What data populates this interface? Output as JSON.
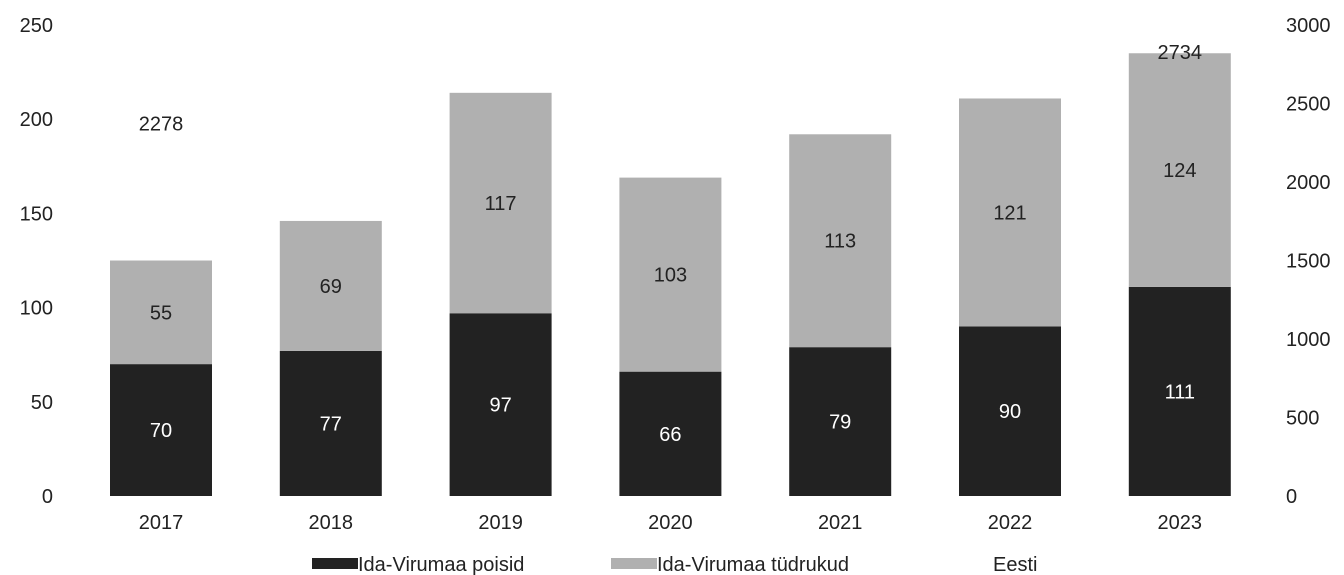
{
  "chart_data": {
    "type": "bar",
    "stacked": true,
    "categories": [
      "2017",
      "2018",
      "2019",
      "2020",
      "2021",
      "2022",
      "2023"
    ],
    "series": [
      {
        "name": "Ida-Virumaa poisid",
        "values": [
          70,
          77,
          97,
          66,
          79,
          90,
          111
        ],
        "color": "#222222",
        "axis": "left",
        "kind": "bar"
      },
      {
        "name": "Ida-Virumaa tüdrukud",
        "values": [
          55,
          69,
          117,
          103,
          113,
          121,
          124
        ],
        "color": "#b0b0b0",
        "axis": "left",
        "kind": "bar"
      },
      {
        "name": "Eesti",
        "values": [
          2278,
          null,
          null,
          null,
          null,
          null,
          2734
        ],
        "axis": "right",
        "kind": "label"
      }
    ],
    "y_left": {
      "min": 0,
      "max": 250,
      "ticks": [
        "0",
        "50",
        "100",
        "150",
        "200",
        "250"
      ]
    },
    "y_right": {
      "min": 0,
      "max": 3000,
      "ticks": [
        "0",
        "500",
        "1000",
        "1500",
        "2000",
        "2500",
        "3000"
      ]
    },
    "grid": false,
    "legend_position": "bottom",
    "title": "",
    "xlabel": "",
    "ylabel": ""
  }
}
